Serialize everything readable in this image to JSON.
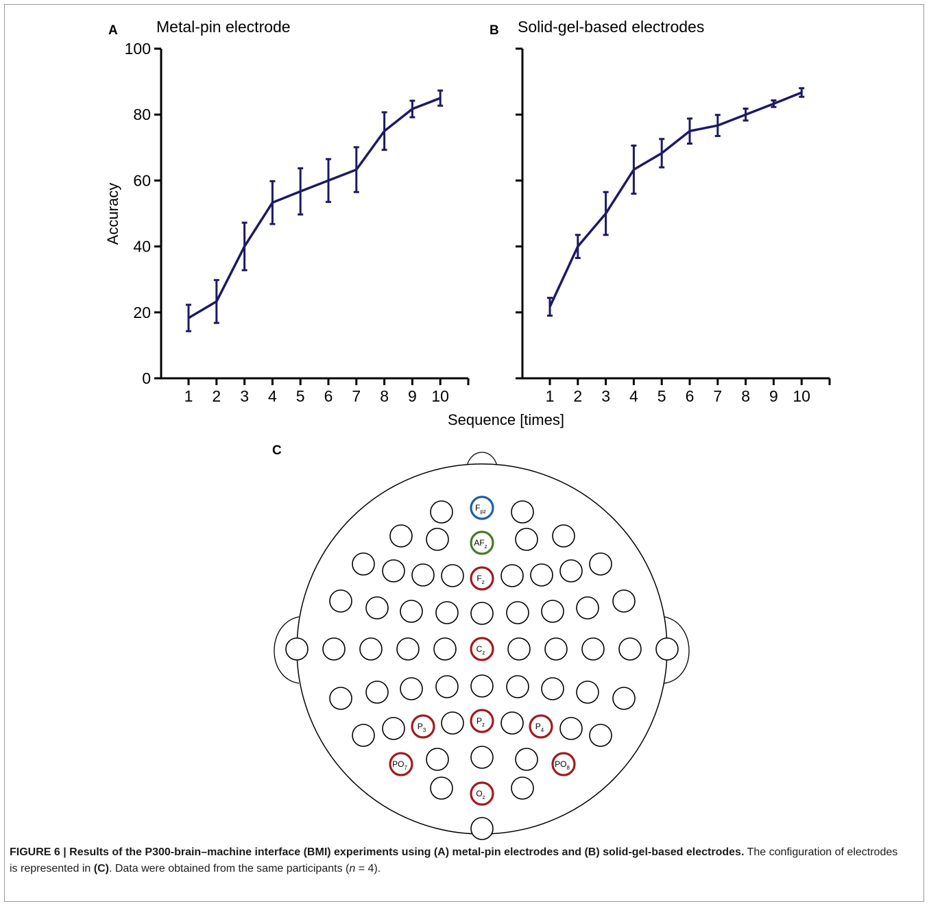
{
  "chart_data": [
    {
      "type": "line",
      "panel_label": "A",
      "title": "Metal-pin electrode",
      "ylabel": "Accuracy",
      "xlabel": "Sequence [times]",
      "x": [
        1,
        2,
        3,
        4,
        5,
        6,
        7,
        8,
        9,
        10
      ],
      "series": [
        {
          "values": [
            18.3,
            23.3,
            40.0,
            53.3,
            56.7,
            60.0,
            63.3,
            75.0,
            81.7,
            85.0
          ],
          "error": [
            4.0,
            6.5,
            7.2,
            6.5,
            7.0,
            6.5,
            6.8,
            5.7,
            2.5,
            2.3
          ]
        }
      ],
      "ylim": [
        0,
        100
      ],
      "yticks": [
        0,
        20,
        40,
        60,
        80,
        100
      ],
      "xticks": [
        1,
        2,
        3,
        4,
        5,
        6,
        7,
        8,
        9,
        10
      ],
      "grid": false,
      "color": "#1c1a63"
    },
    {
      "type": "line",
      "panel_label": "B",
      "title": "Solid-gel-based electrodes",
      "ylabel": "",
      "xlabel": "Sequence [times]",
      "x": [
        1,
        2,
        3,
        4,
        5,
        6,
        7,
        8,
        9,
        10
      ],
      "series": [
        {
          "values": [
            21.7,
            40.0,
            50.0,
            63.3,
            68.3,
            75.0,
            76.7,
            80.0,
            83.3,
            86.7
          ],
          "error": [
            2.7,
            3.5,
            6.5,
            7.3,
            4.3,
            3.8,
            3.2,
            1.8,
            1.0,
            1.3
          ]
        }
      ],
      "ylim": [
        0,
        100
      ],
      "yticks": [
        0,
        20,
        40,
        60,
        80,
        100
      ],
      "xticks": [
        1,
        2,
        3,
        4,
        5,
        6,
        7,
        8,
        9,
        10
      ],
      "grid": false,
      "color": "#1c1a63"
    }
  ],
  "panel_c": {
    "label": "C",
    "colors": {
      "blue": "#1f5ea8",
      "green": "#4a7a2a",
      "red": "#a11c1c",
      "plain": "#000000"
    },
    "highlighted": [
      {
        "main": "F",
        "sub": "pz",
        "color": "blue"
      },
      {
        "main": "AF",
        "sub": "z",
        "color": "green"
      },
      {
        "main": "F",
        "sub": "z",
        "color": "red"
      },
      {
        "main": "C",
        "sub": "z",
        "color": "red"
      },
      {
        "main": "P",
        "sub": "3",
        "color": "red"
      },
      {
        "main": "P",
        "sub": "z",
        "color": "red"
      },
      {
        "main": "P",
        "sub": "4",
        "color": "red"
      },
      {
        "main": "PO",
        "sub": "7",
        "color": "red"
      },
      {
        "main": "PO",
        "sub": "8",
        "color": "red"
      },
      {
        "main": "O",
        "sub": "z",
        "color": "red"
      }
    ]
  },
  "caption": {
    "bold": "FIGURE 6 | Results of the P300-brain–machine interface (BMI) experiments using (A) metal-pin electrodes and (B) solid-gel-based electrodes.",
    "text1": " The configuration of electrodes is represented in ",
    "bold2": "(C)",
    "text2": ". Data were obtained from the same participants (",
    "italic": "n",
    "text3": " = 4)."
  }
}
